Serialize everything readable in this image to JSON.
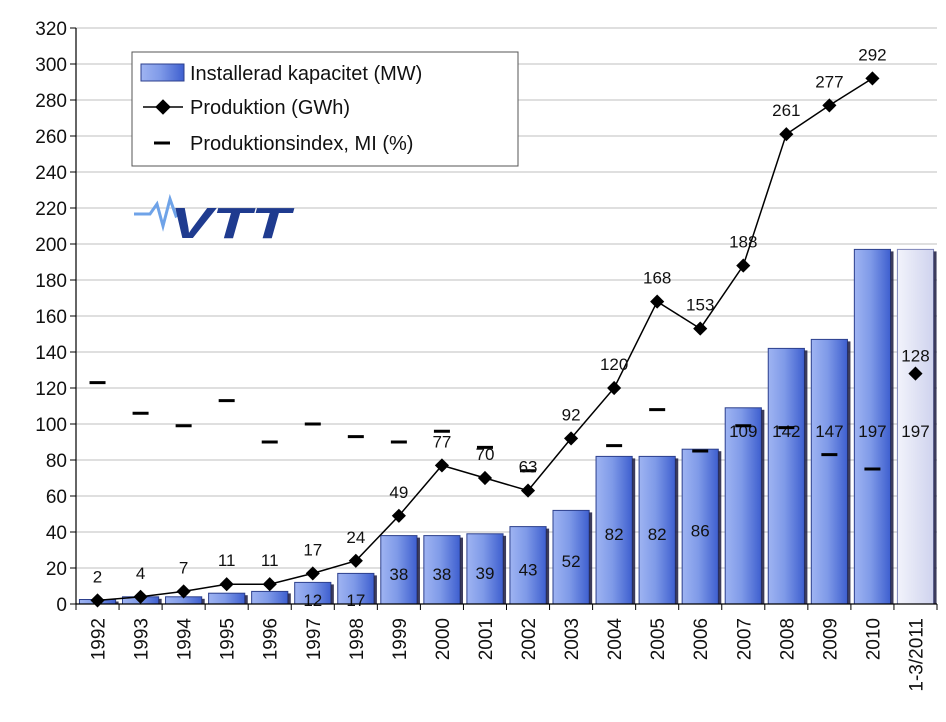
{
  "chart_data": {
    "type": "bar",
    "categories": [
      "1992",
      "1993",
      "1994",
      "1995",
      "1996",
      "1997",
      "1998",
      "1999",
      "2000",
      "2001",
      "2002",
      "2003",
      "2004",
      "2005",
      "2006",
      "2007",
      "2008",
      "2009",
      "2010",
      "1-3/2011"
    ],
    "ylim": [
      0,
      320
    ],
    "yticks": [
      0,
      20,
      40,
      60,
      80,
      100,
      120,
      140,
      160,
      180,
      200,
      220,
      240,
      260,
      280,
      300,
      320
    ],
    "grid": true,
    "legend_position": "top-left",
    "series": [
      {
        "name": "Installerad kapacitet (MW)",
        "kind": "bar",
        "values": [
          2.5,
          4,
          4,
          6,
          7,
          12,
          17,
          38,
          38,
          39,
          43,
          52,
          82,
          82,
          86,
          109,
          142,
          147,
          197,
          197
        ],
        "labels": [
          "",
          "",
          "",
          "",
          "",
          "12",
          "17",
          "38",
          "38",
          "39",
          "43",
          "52",
          "82",
          "82",
          "86",
          "109",
          "142",
          "147",
          "197",
          "197"
        ]
      },
      {
        "name": "Produktion (GWh)",
        "kind": "line",
        "values": [
          2,
          4,
          7,
          11,
          11,
          17,
          24,
          49,
          77,
          70,
          63,
          92,
          120,
          168,
          153,
          188,
          261,
          277,
          292,
          128
        ],
        "labels": [
          "2",
          "4",
          "7",
          "11",
          "11",
          "17",
          "24",
          "49",
          "77",
          "70",
          "63",
          "92",
          "120",
          "168",
          "153",
          "188",
          "261",
          "277",
          "292",
          "128"
        ]
      },
      {
        "name": "Produktionsindex, MI (%)",
        "kind": "dash",
        "values": [
          123,
          106,
          99,
          113,
          90,
          100,
          93,
          90,
          96,
          87,
          74,
          null,
          88,
          108,
          85,
          99,
          98,
          83,
          75,
          null
        ]
      }
    ]
  },
  "legend": {
    "items": [
      "Installerad kapacitet (MW)",
      "Produktion (GWh)",
      "Produktionsindex, MI (%)"
    ]
  },
  "logo": {
    "text": "VTT",
    "color": "#1f3b8f"
  },
  "colors": {
    "bar": "#7f9ae8",
    "bar_last": "#e4e6f6",
    "line": "#000000",
    "grid": "#bfbfbf"
  }
}
